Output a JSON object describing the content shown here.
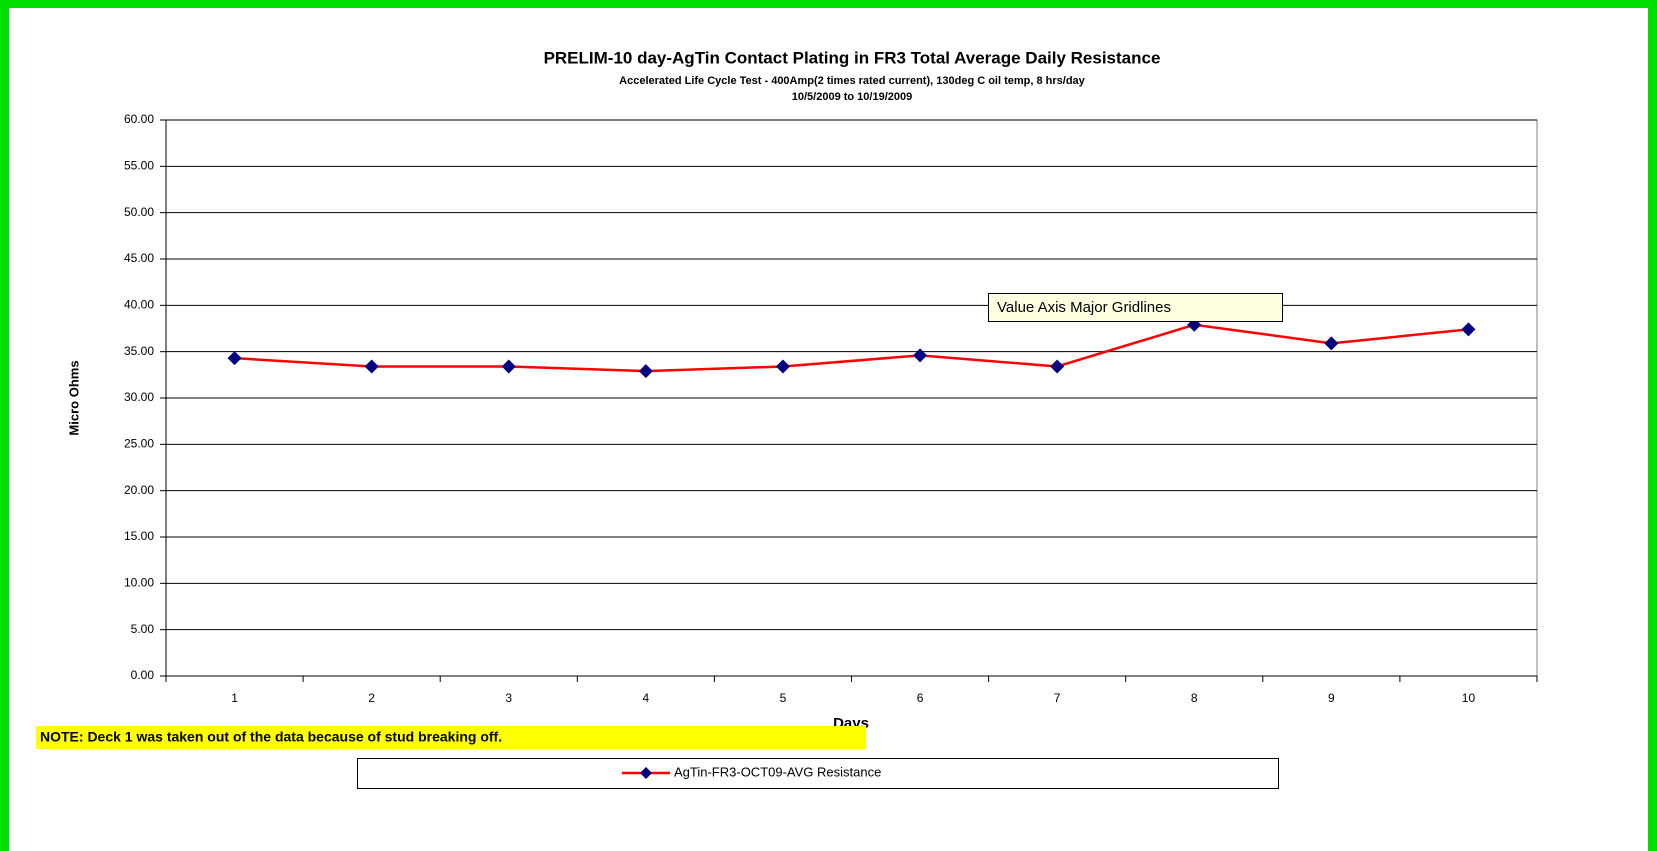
{
  "chart_data": {
    "type": "line",
    "title": "PRELIM-10 day-AgTin Contact Plating in FR3 Total Average Daily Resistance",
    "subtitle": [
      "Accelerated Life Cycle Test - 400Amp(2 times rated current), 130deg C oil temp, 8 hrs/day",
      "10/5/2009 to 10/19/2009"
    ],
    "x_label": "Days",
    "y_label": "Micro Ohms",
    "categories": [
      "1",
      "2",
      "3",
      "4",
      "5",
      "6",
      "7",
      "8",
      "9",
      "10"
    ],
    "series": [
      {
        "name": "AgTin-FR3-OCT09-AVG Resistance",
        "color": "#ff0000",
        "marker_color": "#000080",
        "values": [
          34.3,
          33.4,
          33.4,
          32.9,
          33.4,
          34.6,
          33.4,
          37.9,
          35.9,
          37.4
        ]
      }
    ],
    "ylim": [
      0,
      60
    ],
    "yticks": [
      {
        "value": 0,
        "label": "0.00"
      },
      {
        "value": 5,
        "label": "5.00"
      },
      {
        "value": 10,
        "label": "10.00"
      },
      {
        "value": 15,
        "label": "15.00"
      },
      {
        "value": 20,
        "label": "20.00"
      },
      {
        "value": 25,
        "label": "25.00"
      },
      {
        "value": 30,
        "label": "30.00"
      },
      {
        "value": 35,
        "label": "35.00"
      },
      {
        "value": 40,
        "label": "40.00"
      },
      {
        "value": 45,
        "label": "45.00"
      },
      {
        "value": 50,
        "label": "50.00"
      },
      {
        "value": 55,
        "label": "55.00"
      },
      {
        "value": 60,
        "label": "60.00"
      }
    ],
    "grid": true,
    "tooltip": "Value Axis Major Gridlines",
    "note": "NOTE:  Deck 1 was taken out of the data because of stud breaking off."
  }
}
